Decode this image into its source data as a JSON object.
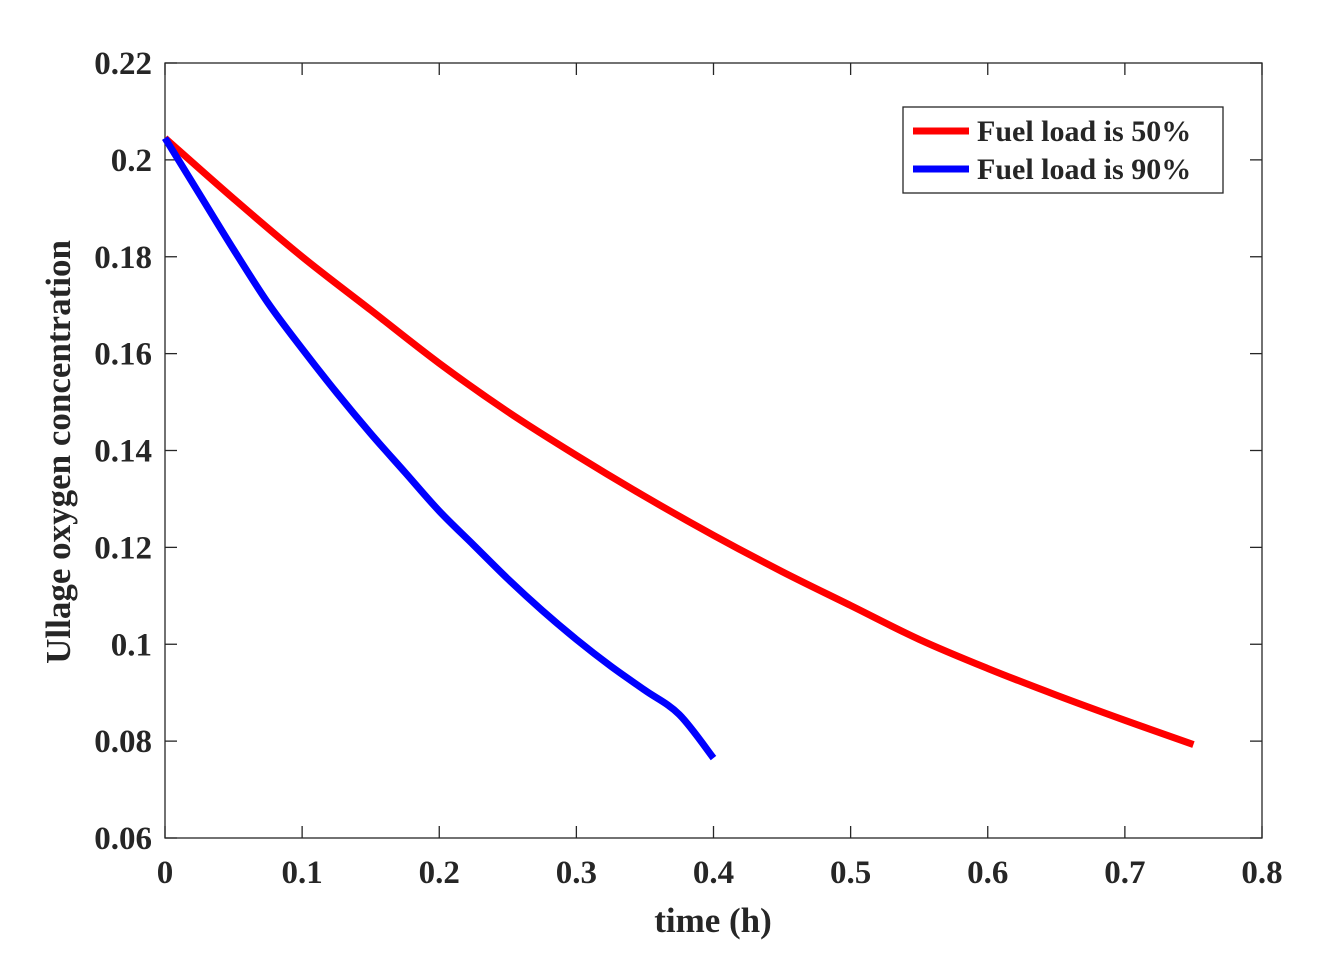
{
  "chart_data": {
    "type": "line",
    "title": "",
    "xlabel": "time (h)",
    "ylabel": "Ullage oxygen concentration",
    "xlim": [
      0,
      0.8
    ],
    "ylim": [
      0.06,
      0.22
    ],
    "xticks": [
      0,
      0.1,
      0.2,
      0.3,
      0.4,
      0.5,
      0.6,
      0.7,
      0.8
    ],
    "xtick_labels": [
      "0",
      "0.1",
      "0.2",
      "0.3",
      "0.4",
      "0.5",
      "0.6",
      "0.7",
      "0.8"
    ],
    "yticks": [
      0.06,
      0.08,
      0.1,
      0.12,
      0.14,
      0.16,
      0.18,
      0.2,
      0.22
    ],
    "ytick_labels": [
      "0.06",
      "0.08",
      "0.1",
      "0.12",
      "0.14",
      "0.16",
      "0.18",
      "0.2",
      "0.22"
    ],
    "grid": false,
    "legend_position": "top-right",
    "series": [
      {
        "name": "Fuel load is 50%",
        "color": "#ff0000",
        "x": [
          0,
          0.05,
          0.1,
          0.15,
          0.2,
          0.25,
          0.3,
          0.35,
          0.4,
          0.45,
          0.5,
          0.55,
          0.6,
          0.65,
          0.7,
          0.75
        ],
        "y": [
          0.2045,
          0.192,
          0.18,
          0.169,
          0.158,
          0.148,
          0.139,
          0.1305,
          0.1225,
          0.115,
          0.108,
          0.101,
          0.095,
          0.0895,
          0.0843,
          0.0793
        ]
      },
      {
        "name": "Fuel load is 90%",
        "color": "#0000ff",
        "x": [
          0,
          0.025,
          0.05,
          0.075,
          0.1,
          0.125,
          0.15,
          0.175,
          0.2,
          0.225,
          0.25,
          0.275,
          0.3,
          0.325,
          0.35,
          0.375,
          0.4
        ],
        "y": [
          0.2045,
          0.193,
          0.1815,
          0.1705,
          0.161,
          0.152,
          0.1435,
          0.1355,
          0.1275,
          0.1205,
          0.1135,
          0.107,
          0.101,
          0.0955,
          0.0905,
          0.0855,
          0.0765
        ]
      }
    ]
  }
}
